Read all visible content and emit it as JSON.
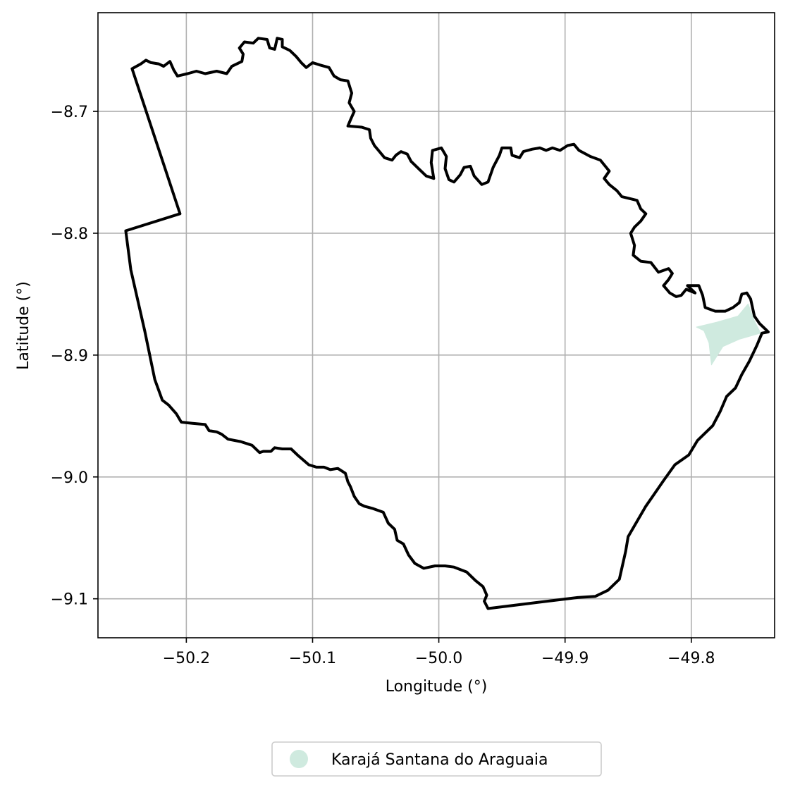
{
  "chart_data": {
    "type": "map",
    "xlabel": "Longitude (°)",
    "ylabel": "Latitude (°)",
    "xlim": [
      -50.27,
      -49.734
    ],
    "ylim": [
      -9.132,
      -8.619
    ],
    "xticks": [
      -50.2,
      -50.1,
      -50.0,
      -49.9,
      -49.8
    ],
    "xtick_labels": [
      "−50.2",
      "−50.1",
      "−50.0",
      "−49.9",
      "−49.8"
    ],
    "yticks": [
      -8.7,
      -8.8,
      -8.9,
      -9.0,
      -9.1
    ],
    "ytick_labels": [
      "−8.7",
      "−8.8",
      "−8.9",
      "−9.0",
      "−9.1"
    ],
    "grid": true,
    "legend_position": "bottom-center",
    "series": [
      {
        "name": "Karajá Santana do Araguaia",
        "kind": "polygon-fill",
        "color": "#cfeadf",
        "coords": [
          [
            -49.796,
            -8.877
          ],
          [
            -49.78,
            -8.873
          ],
          [
            -49.763,
            -8.868
          ],
          [
            -49.755,
            -8.858
          ],
          [
            -49.75,
            -8.872
          ],
          [
            -49.745,
            -8.882
          ],
          [
            -49.762,
            -8.887
          ],
          [
            -49.775,
            -8.893
          ],
          [
            -49.784,
            -8.908
          ],
          [
            -49.786,
            -8.89
          ],
          [
            -49.79,
            -8.88
          ],
          [
            -49.796,
            -8.877
          ]
        ]
      },
      {
        "name": "",
        "kind": "boundary-line",
        "color": "#000000",
        "coords": [
          [
            -50.243,
            -8.665
          ],
          [
            -50.236,
            -8.661
          ],
          [
            -50.232,
            -8.658
          ],
          [
            -50.228,
            -8.66
          ],
          [
            -50.222,
            -8.661
          ],
          [
            -50.218,
            -8.663
          ],
          [
            -50.213,
            -8.659
          ],
          [
            -50.21,
            -8.666
          ],
          [
            -50.207,
            -8.671
          ],
          [
            -50.199,
            -8.669
          ],
          [
            -50.192,
            -8.667
          ],
          [
            -50.185,
            -8.669
          ],
          [
            -50.176,
            -8.667
          ],
          [
            -50.168,
            -8.669
          ],
          [
            -50.164,
            -8.663
          ],
          [
            -50.156,
            -8.659
          ],
          [
            -50.155,
            -8.653
          ],
          [
            -50.158,
            -8.648
          ],
          [
            -50.154,
            -8.643
          ],
          [
            -50.147,
            -8.644
          ],
          [
            -50.143,
            -8.64
          ],
          [
            -50.136,
            -8.641
          ],
          [
            -50.134,
            -8.648
          ],
          [
            -50.13,
            -8.649
          ],
          [
            -50.128,
            -8.64
          ],
          [
            -50.124,
            -8.641
          ],
          [
            -50.124,
            -8.647
          ],
          [
            -50.118,
            -8.65
          ],
          [
            -50.113,
            -8.655
          ],
          [
            -50.109,
            -8.66
          ],
          [
            -50.105,
            -8.664
          ],
          [
            -50.1,
            -8.66
          ],
          [
            -50.094,
            -8.662
          ],
          [
            -50.087,
            -8.664
          ],
          [
            -50.083,
            -8.671
          ],
          [
            -50.078,
            -8.674
          ],
          [
            -50.072,
            -8.675
          ],
          [
            -50.069,
            -8.685
          ],
          [
            -50.071,
            -8.693
          ],
          [
            -50.067,
            -8.7
          ],
          [
            -50.07,
            -8.707
          ],
          [
            -50.072,
            -8.712
          ],
          [
            -50.061,
            -8.713
          ],
          [
            -50.055,
            -8.715
          ],
          [
            -50.054,
            -8.722
          ],
          [
            -50.051,
            -8.728
          ],
          [
            -50.047,
            -8.733
          ],
          [
            -50.043,
            -8.738
          ],
          [
            -50.037,
            -8.74
          ],
          [
            -50.034,
            -8.736
          ],
          [
            -50.03,
            -8.733
          ],
          [
            -50.025,
            -8.735
          ],
          [
            -50.022,
            -8.741
          ],
          [
            -50.016,
            -8.747
          ],
          [
            -50.01,
            -8.753
          ],
          [
            -50.004,
            -8.755
          ],
          [
            -50.006,
            -8.742
          ],
          [
            -50.005,
            -8.732
          ],
          [
            -49.998,
            -8.73
          ],
          [
            -49.994,
            -8.737
          ],
          [
            -49.995,
            -8.747
          ],
          [
            -49.992,
            -8.756
          ],
          [
            -49.988,
            -8.758
          ],
          [
            -49.983,
            -8.752
          ],
          [
            -49.98,
            -8.746
          ],
          [
            -49.975,
            -8.745
          ],
          [
            -49.972,
            -8.753
          ],
          [
            -49.966,
            -8.76
          ],
          [
            -49.961,
            -8.758
          ],
          [
            -49.957,
            -8.746
          ],
          [
            -49.952,
            -8.736
          ],
          [
            -49.95,
            -8.73
          ],
          [
            -49.943,
            -8.73
          ],
          [
            -49.942,
            -8.736
          ],
          [
            -49.936,
            -8.738
          ],
          [
            -49.933,
            -8.733
          ],
          [
            -49.926,
            -8.731
          ],
          [
            -49.92,
            -8.73
          ],
          [
            -49.915,
            -8.732
          ],
          [
            -49.91,
            -8.73
          ],
          [
            -49.904,
            -8.732
          ],
          [
            -49.898,
            -8.728
          ],
          [
            -49.893,
            -8.727
          ],
          [
            -49.889,
            -8.732
          ],
          [
            -49.88,
            -8.737
          ],
          [
            -49.872,
            -8.74
          ],
          [
            -49.865,
            -8.749
          ],
          [
            -49.869,
            -8.755
          ],
          [
            -49.865,
            -8.76
          ],
          [
            -49.859,
            -8.765
          ],
          [
            -49.855,
            -8.77
          ],
          [
            -49.843,
            -8.773
          ],
          [
            -49.84,
            -8.78
          ],
          [
            -49.836,
            -8.784
          ],
          [
            -49.84,
            -8.79
          ],
          [
            -49.845,
            -8.795
          ],
          [
            -49.848,
            -8.8
          ],
          [
            -49.845,
            -8.81
          ],
          [
            -49.846,
            -8.818
          ],
          [
            -49.84,
            -8.823
          ],
          [
            -49.832,
            -8.824
          ],
          [
            -49.826,
            -8.832
          ],
          [
            -49.818,
            -8.829
          ],
          [
            -49.815,
            -8.833
          ],
          [
            -49.818,
            -8.838
          ],
          [
            -49.822,
            -8.843
          ],
          [
            -49.817,
            -8.849
          ],
          [
            -49.812,
            -8.852
          ],
          [
            -49.808,
            -8.851
          ],
          [
            -49.804,
            -8.846
          ],
          [
            -49.797,
            -8.849
          ],
          [
            -49.803,
            -8.843
          ],
          [
            -49.798,
            -8.843
          ],
          [
            -49.794,
            -8.843
          ],
          [
            -49.791,
            -8.851
          ],
          [
            -49.789,
            -8.861
          ],
          [
            -49.781,
            -8.864
          ],
          [
            -49.773,
            -8.864
          ],
          [
            -49.767,
            -8.861
          ],
          [
            -49.762,
            -8.857
          ],
          [
            -49.76,
            -8.85
          ],
          [
            -49.756,
            -8.849
          ],
          [
            -49.753,
            -8.854
          ],
          [
            -49.75,
            -8.868
          ],
          [
            -49.746,
            -8.874
          ],
          [
            -49.741,
            -8.879
          ],
          [
            -49.739,
            -8.881
          ],
          [
            -49.744,
            -8.882
          ],
          [
            -49.748,
            -8.892
          ],
          [
            -49.754,
            -8.905
          ],
          [
            -49.76,
            -8.916
          ],
          [
            -49.765,
            -8.927
          ],
          [
            -49.772,
            -8.934
          ],
          [
            -49.777,
            -8.946
          ],
          [
            -49.783,
            -8.958
          ],
          [
            -49.795,
            -8.97
          ],
          [
            -49.802,
            -8.982
          ],
          [
            -49.813,
            -8.99
          ],
          [
            -49.822,
            -9.003
          ],
          [
            -49.83,
            -9.015
          ],
          [
            -49.836,
            -9.024
          ],
          [
            -49.85,
            -9.049
          ],
          [
            -49.852,
            -9.061
          ],
          [
            -49.857,
            -9.084
          ],
          [
            -49.866,
            -9.093
          ],
          [
            -49.876,
            -9.098
          ],
          [
            -49.89,
            -9.099
          ],
          [
            -49.93,
            -9.104
          ],
          [
            -49.961,
            -9.108
          ],
          [
            -49.964,
            -9.102
          ],
          [
            -49.962,
            -9.097
          ],
          [
            -49.965,
            -9.09
          ],
          [
            -49.971,
            -9.085
          ],
          [
            -49.978,
            -9.078
          ],
          [
            -49.988,
            -9.074
          ],
          [
            -49.995,
            -9.073
          ],
          [
            -50.003,
            -9.073
          ],
          [
            -50.012,
            -9.075
          ],
          [
            -50.019,
            -9.071
          ],
          [
            -50.024,
            -9.064
          ],
          [
            -50.028,
            -9.055
          ],
          [
            -50.033,
            -9.052
          ],
          [
            -50.035,
            -9.043
          ],
          [
            -50.04,
            -9.038
          ],
          [
            -50.044,
            -9.029
          ],
          [
            -50.052,
            -9.026
          ],
          [
            -50.059,
            -9.024
          ],
          [
            -50.063,
            -9.022
          ],
          [
            -50.067,
            -9.016
          ],
          [
            -50.07,
            -9.008
          ],
          [
            -50.072,
            -9.004
          ],
          [
            -50.074,
            -8.997
          ],
          [
            -50.08,
            -8.993
          ],
          [
            -50.086,
            -8.994
          ],
          [
            -50.091,
            -8.992
          ],
          [
            -50.097,
            -8.992
          ],
          [
            -50.103,
            -8.99
          ],
          [
            -50.112,
            -8.982
          ],
          [
            -50.117,
            -8.977
          ],
          [
            -50.124,
            -8.977
          ],
          [
            -50.13,
            -8.976
          ],
          [
            -50.133,
            -8.979
          ],
          [
            -50.139,
            -8.979
          ],
          [
            -50.142,
            -8.98
          ],
          [
            -50.148,
            -8.974
          ],
          [
            -50.157,
            -8.971
          ],
          [
            -50.167,
            -8.969
          ],
          [
            -50.172,
            -8.965
          ],
          [
            -50.176,
            -8.963
          ],
          [
            -50.182,
            -8.962
          ],
          [
            -50.185,
            -8.957
          ],
          [
            -50.195,
            -8.956
          ],
          [
            -50.204,
            -8.955
          ],
          [
            -50.208,
            -8.948
          ],
          [
            -50.214,
            -8.941
          ],
          [
            -50.219,
            -8.937
          ],
          [
            -50.225,
            -8.92
          ],
          [
            -50.233,
            -8.88
          ],
          [
            -50.244,
            -8.83
          ],
          [
            -50.248,
            -8.798
          ],
          [
            -50.205,
            -8.784
          ],
          [
            -50.243,
            -8.665
          ]
        ]
      }
    ]
  }
}
